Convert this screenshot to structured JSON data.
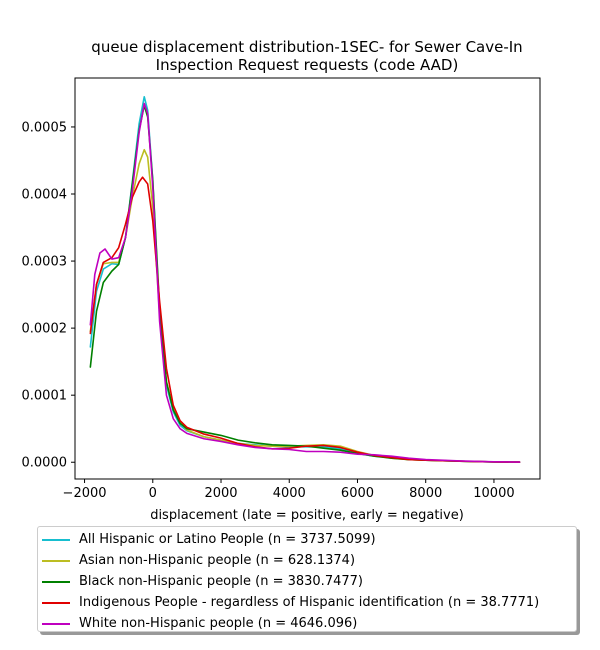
{
  "chart_data": {
    "type": "line",
    "title": "queue displacement distribution-1SEC-  for Sewer Cave-In Inspection Request  requests (code AAD)",
    "title_lines": [
      "queue displacement distribution-1SEC-  for Sewer Cave-In",
      "Inspection Request  requests (code AAD)"
    ],
    "xlabel": "displacement (late = positive, early = negative)",
    "ylabel": "",
    "xlim": [
      -2280,
      11350
    ],
    "ylim": [
      -2.5e-05,
      0.000573
    ],
    "xticks": [
      -2000,
      0,
      2000,
      4000,
      6000,
      8000,
      10000
    ],
    "xtick_labels": [
      "−2000",
      "0",
      "2000",
      "4000",
      "6000",
      "8000",
      "10000"
    ],
    "yticks": [
      0.0,
      0.0001,
      0.0002,
      0.0003,
      0.0004,
      0.0005
    ],
    "ytick_labels": [
      "0.0000",
      "0.0001",
      "0.0002",
      "0.0003",
      "0.0004",
      "0.0005"
    ],
    "grid": false,
    "legend_position": "below plot",
    "series": [
      {
        "name": "All Hispanic or Latino People (n = 3737.5099)",
        "color": "#17becf",
        "points": [
          [
            -1830,
            0.000172
          ],
          [
            -1650,
            0.000255
          ],
          [
            -1450,
            0.000288
          ],
          [
            -1200,
            0.000296
          ],
          [
            -1000,
            0.000295
          ],
          [
            -800,
            0.000335
          ],
          [
            -600,
            0.000418
          ],
          [
            -400,
            0.000505
          ],
          [
            -250,
            0.000545
          ],
          [
            -150,
            0.000525
          ],
          [
            0,
            0.00042
          ],
          [
            200,
            0.00022
          ],
          [
            400,
            0.000115
          ],
          [
            600,
            7.5e-05
          ],
          [
            800,
            5.5e-05
          ],
          [
            1000,
            4.7e-05
          ],
          [
            1500,
            3.8e-05
          ],
          [
            2000,
            3.3e-05
          ],
          [
            2500,
            2.8e-05
          ],
          [
            3000,
            2.6e-05
          ],
          [
            3500,
            2.4e-05
          ],
          [
            4000,
            2.3e-05
          ],
          [
            4500,
            2.3e-05
          ],
          [
            5000,
            2.3e-05
          ],
          [
            5500,
            2e-05
          ],
          [
            6000,
            1.3e-05
          ],
          [
            6500,
            9e-06
          ],
          [
            7000,
            7e-06
          ],
          [
            7500,
            5e-06
          ],
          [
            8000,
            3e-06
          ],
          [
            9000,
            1.5e-06
          ],
          [
            10000,
            5e-07
          ],
          [
            10750,
            2e-07
          ]
        ]
      },
      {
        "name": "Asian non-Hispanic people (n = 628.1374)",
        "color": "#bcbd22",
        "points": [
          [
            -1830,
            0.000195
          ],
          [
            -1650,
            0.000265
          ],
          [
            -1450,
            0.000296
          ],
          [
            -1200,
            0.000298
          ],
          [
            -1000,
            0.000298
          ],
          [
            -800,
            0.000335
          ],
          [
            -600,
            0.000395
          ],
          [
            -400,
            0.000445
          ],
          [
            -250,
            0.000466
          ],
          [
            -150,
            0.000455
          ],
          [
            0,
            0.00038
          ],
          [
            200,
            0.00022
          ],
          [
            400,
            0.00012
          ],
          [
            600,
            8e-05
          ],
          [
            800,
            6e-05
          ],
          [
            1000,
            4.8e-05
          ],
          [
            1500,
            3.8e-05
          ],
          [
            2000,
            3.3e-05
          ],
          [
            2500,
            2.8e-05
          ],
          [
            3000,
            2.5e-05
          ],
          [
            3500,
            2.4e-05
          ],
          [
            4000,
            2.4e-05
          ],
          [
            4500,
            2.5e-05
          ],
          [
            5000,
            2.6e-05
          ],
          [
            5500,
            2.4e-05
          ],
          [
            6000,
            1.6e-05
          ],
          [
            6500,
            1e-05
          ],
          [
            7000,
            6e-06
          ],
          [
            7500,
            4e-06
          ],
          [
            8000,
            3e-06
          ],
          [
            9000,
            1.5e-06
          ],
          [
            10000,
            5e-07
          ],
          [
            10750,
            2e-07
          ]
        ]
      },
      {
        "name": "Black non-Hispanic people (n = 3830.7477)",
        "color": "#008000",
        "points": [
          [
            -1830,
            0.000142
          ],
          [
            -1650,
            0.000225
          ],
          [
            -1450,
            0.000268
          ],
          [
            -1200,
            0.000285
          ],
          [
            -1000,
            0.000295
          ],
          [
            -800,
            0.000335
          ],
          [
            -600,
            0.000415
          ],
          [
            -400,
            0.000495
          ],
          [
            -250,
            0.000532
          ],
          [
            -150,
            0.000515
          ],
          [
            0,
            0.00042
          ],
          [
            200,
            0.00023
          ],
          [
            400,
            0.00012
          ],
          [
            600,
            7.8e-05
          ],
          [
            800,
            5.8e-05
          ],
          [
            1000,
            5e-05
          ],
          [
            1500,
            4.5e-05
          ],
          [
            2000,
            4e-05
          ],
          [
            2500,
            3.3e-05
          ],
          [
            3000,
            2.9e-05
          ],
          [
            3500,
            2.6e-05
          ],
          [
            4000,
            2.5e-05
          ],
          [
            4500,
            2.4e-05
          ],
          [
            5000,
            2.1e-05
          ],
          [
            5500,
            1.8e-05
          ],
          [
            6000,
            1.3e-05
          ],
          [
            6500,
            9e-06
          ],
          [
            7000,
            6e-06
          ],
          [
            7500,
            4e-06
          ],
          [
            8000,
            3e-06
          ],
          [
            9000,
            1.5e-06
          ],
          [
            10000,
            5e-07
          ],
          [
            10750,
            2e-07
          ]
        ]
      },
      {
        "name": "Indigenous People - regardless of Hispanic identification (n = 38.7771)",
        "color": "#e00000",
        "points": [
          [
            -1830,
            0.000192
          ],
          [
            -1650,
            0.000265
          ],
          [
            -1450,
            0.000298
          ],
          [
            -1200,
            0.000305
          ],
          [
            -1000,
            0.00032
          ],
          [
            -800,
            0.000355
          ],
          [
            -600,
            0.000395
          ],
          [
            -400,
            0.000418
          ],
          [
            -300,
            0.000425
          ],
          [
            -150,
            0.000415
          ],
          [
            0,
            0.00036
          ],
          [
            200,
            0.00024
          ],
          [
            400,
            0.00014
          ],
          [
            600,
            8.5e-05
          ],
          [
            800,
            6.2e-05
          ],
          [
            1000,
            5.2e-05
          ],
          [
            1500,
            4.2e-05
          ],
          [
            2000,
            3.6e-05
          ],
          [
            2500,
            2.8e-05
          ],
          [
            3000,
            2.3e-05
          ],
          [
            3500,
            2e-05
          ],
          [
            4000,
            2.1e-05
          ],
          [
            4500,
            2.4e-05
          ],
          [
            5000,
            2.5e-05
          ],
          [
            5500,
            2.2e-05
          ],
          [
            6000,
            1.5e-05
          ],
          [
            6500,
            1e-05
          ],
          [
            7000,
            7e-06
          ],
          [
            7500,
            4e-06
          ],
          [
            8000,
            3e-06
          ],
          [
            9000,
            1.5e-06
          ],
          [
            10000,
            5e-07
          ],
          [
            10750,
            2e-07
          ]
        ]
      },
      {
        "name": "White non-Hispanic people (n = 4646.096)",
        "color": "#bf00bf",
        "points": [
          [
            -1830,
            0.000205
          ],
          [
            -1700,
            0.00028
          ],
          [
            -1550,
            0.000312
          ],
          [
            -1400,
            0.000318
          ],
          [
            -1200,
            0.000303
          ],
          [
            -1000,
            0.000305
          ],
          [
            -800,
            0.000335
          ],
          [
            -600,
            0.000405
          ],
          [
            -400,
            0.000492
          ],
          [
            -250,
            0.000535
          ],
          [
            -150,
            0.00052
          ],
          [
            0,
            0.00041
          ],
          [
            200,
            0.00021
          ],
          [
            400,
            0.0001
          ],
          [
            600,
            6.5e-05
          ],
          [
            800,
            5e-05
          ],
          [
            1000,
            4.3e-05
          ],
          [
            1500,
            3.5e-05
          ],
          [
            2000,
            3.1e-05
          ],
          [
            2500,
            2.6e-05
          ],
          [
            3000,
            2.2e-05
          ],
          [
            3500,
            2e-05
          ],
          [
            4000,
            1.9e-05
          ],
          [
            4500,
            1.6e-05
          ],
          [
            5000,
            1.6e-05
          ],
          [
            5500,
            1.5e-05
          ],
          [
            6000,
            1.2e-05
          ],
          [
            6500,
            1.1e-05
          ],
          [
            7000,
            9e-06
          ],
          [
            7500,
            6e-06
          ],
          [
            8000,
            4e-06
          ],
          [
            9000,
            2e-06
          ],
          [
            10000,
            7e-07
          ],
          [
            10750,
            2e-07
          ]
        ]
      }
    ]
  }
}
